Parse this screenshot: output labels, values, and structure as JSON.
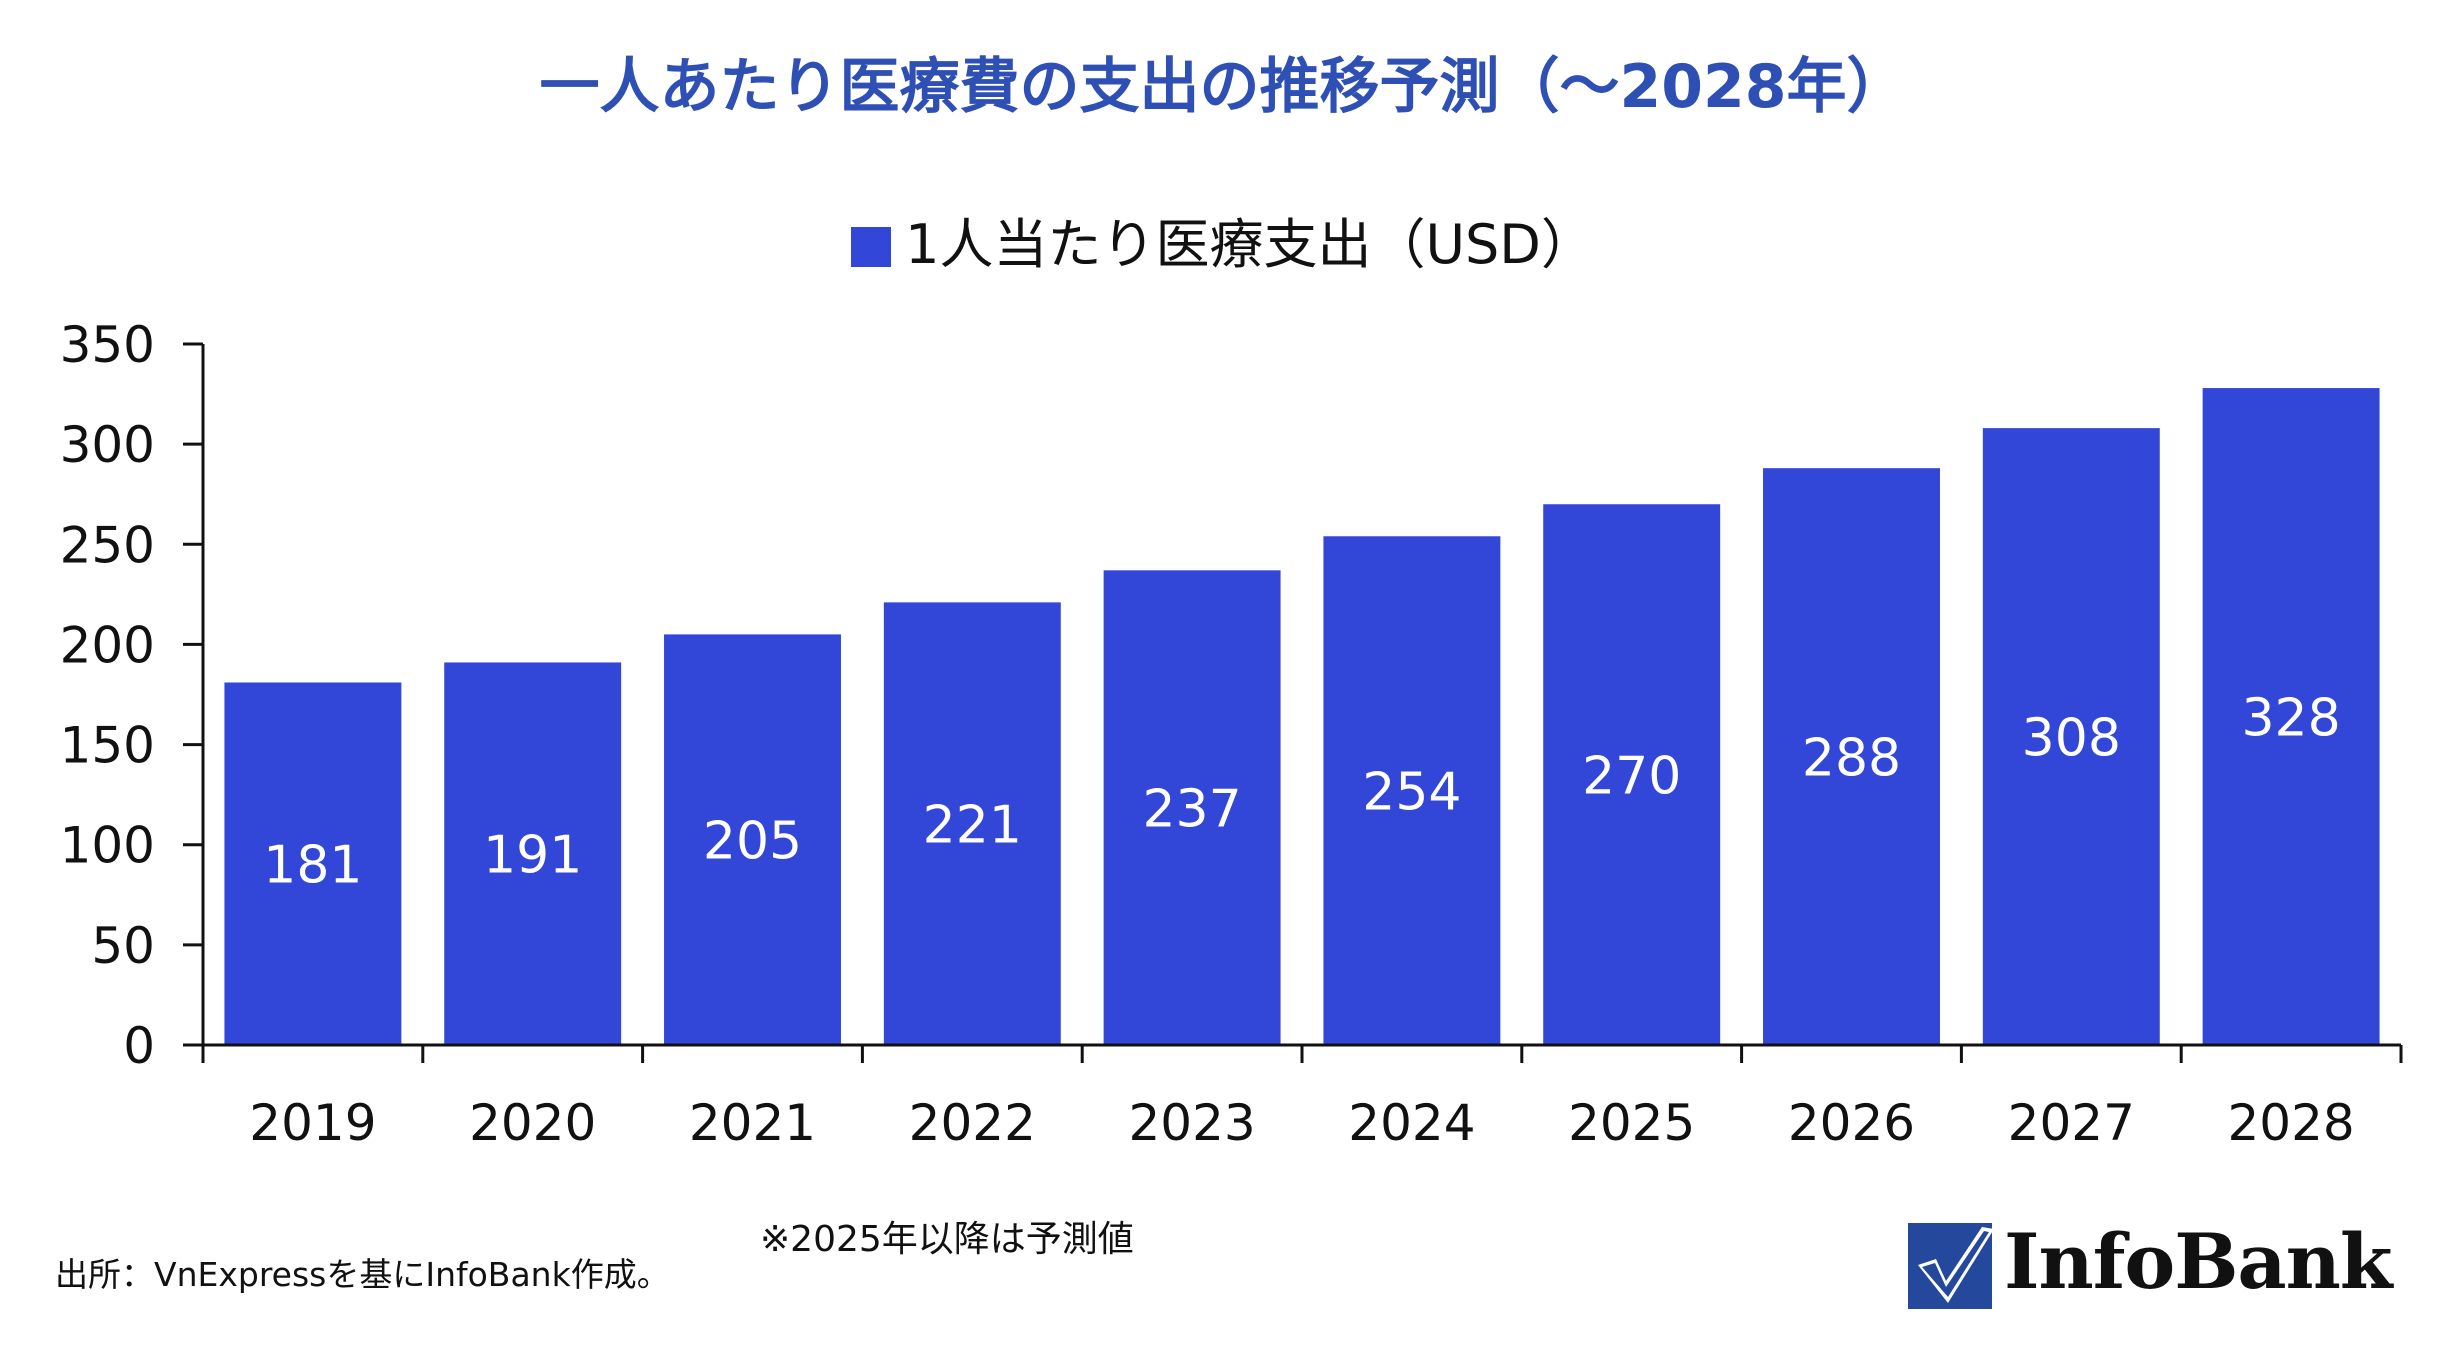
{
  "colors": {
    "bar": "#3246d8",
    "title": "#2e4fb3",
    "axis": "#111111",
    "bar_label": "#ffffff"
  },
  "chart_data": {
    "type": "bar",
    "title": "一人あたり医療費の支出の推移予測（～2028年）",
    "xlabel": "",
    "ylabel": "",
    "categories": [
      "2019",
      "2020",
      "2021",
      "2022",
      "2023",
      "2024",
      "2025",
      "2026",
      "2027",
      "2028"
    ],
    "series": [
      {
        "name": "1人当たり医療支出（USD）",
        "values": [
          181,
          191,
          205,
          221,
          237,
          254,
          270,
          288,
          308,
          328
        ]
      }
    ],
    "ylim": [
      0,
      350
    ],
    "yticks": [
      "0",
      "50",
      "100",
      "150",
      "200",
      "250",
      "300",
      "350"
    ],
    "grid": false,
    "legend_position": "top-center",
    "data_labels": true
  },
  "notes": {
    "forecast": "※2025年以降は予測値",
    "source": "出所：VnExpressを基にInfoBank作成。"
  },
  "logo": {
    "text": "InfoBank",
    "icon": "checkmark-logo-icon"
  }
}
